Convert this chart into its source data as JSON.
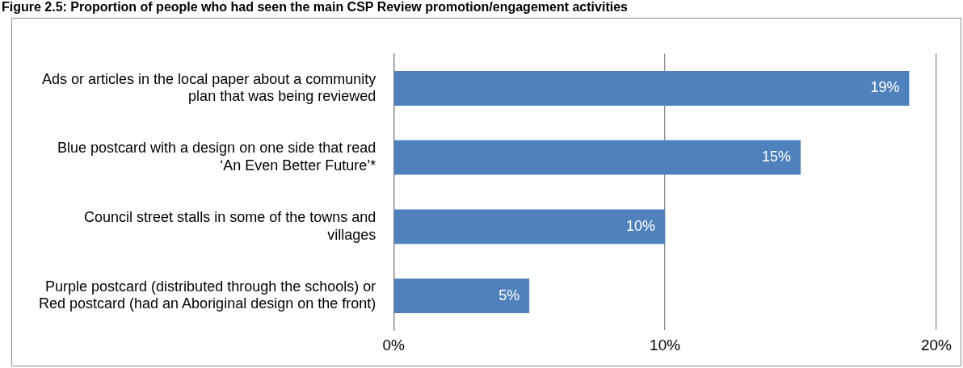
{
  "chart_data": {
    "type": "bar",
    "orientation": "horizontal",
    "title": "Figure 2.5: Proportion of people who had seen the main CSP Review promotion/engagement activities",
    "categories": [
      "Ads or articles in the local paper about a community plan that was being reviewed",
      "Blue postcard with a design on one side that read ‘An Even Better Future’*",
      "Council street stalls in some of the towns and villages",
      "Purple postcard (distributed through the schools) or Red postcard (had an Aboriginal design on the front)"
    ],
    "values": [
      19,
      15,
      10,
      5
    ],
    "color": "#4f81bd",
    "value_labels": [
      "19%",
      "15%",
      "10%",
      "5%"
    ],
    "xlim": [
      0,
      20
    ],
    "xticks": [
      {
        "value": 0,
        "label": "0%"
      },
      {
        "value": 10,
        "label": "10%"
      },
      {
        "value": 20,
        "label": "20%"
      }
    ],
    "grid": "x",
    "legend": false
  }
}
